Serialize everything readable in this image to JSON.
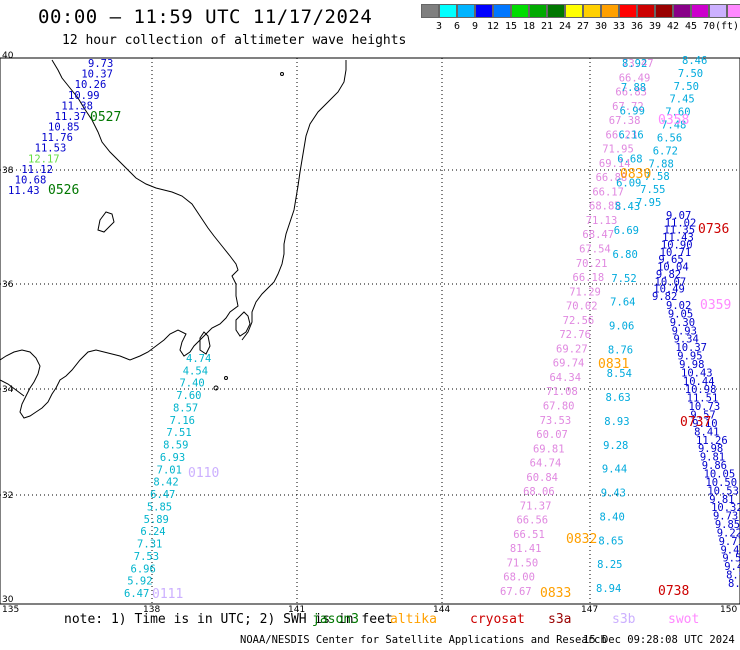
{
  "title": "00:00 — 11:59 UTC 11/17/2024",
  "subtitle": "12 hour collection of altimeter wave heights",
  "colorbar": {
    "colors": [
      "#7f7f7f",
      "#00ffff",
      "#00b4ff",
      "#0000ff",
      "#0077ff",
      "#00dd00",
      "#00aa00",
      "#007700",
      "#ffff00",
      "#ffd000",
      "#ffa000",
      "#ff0000",
      "#cc0000",
      "#990000",
      "#880088",
      "#cc00cc",
      "#ccb0ff",
      "#ff88ff",
      "#000000"
    ],
    "ticks": [
      "3",
      "6",
      "9",
      "12",
      "15",
      "18",
      "21",
      "24",
      "27",
      "30",
      "33",
      "36",
      "39",
      "42",
      "45",
      "70",
      "(ft)"
    ]
  },
  "axes": {
    "x_ticks": [
      "135",
      "138",
      "141",
      "144",
      "147",
      "150"
    ],
    "y_ticks": [
      "40",
      "38",
      "36",
      "34",
      "32",
      "30"
    ]
  },
  "passes": [
    {
      "time": "0527",
      "color": "#007700"
    },
    {
      "time": "0526",
      "color": "#007700"
    },
    {
      "time": "0110",
      "color": "#ccb0ff"
    },
    {
      "time": "0111",
      "color": "#ccb0ff"
    },
    {
      "time": "0358",
      "color": "#ff88ff"
    },
    {
      "time": "0830",
      "color": "#ffa000"
    },
    {
      "time": "0736",
      "color": "#cc0000"
    },
    {
      "time": "0359",
      "color": "#ff88ff"
    },
    {
      "time": "0831",
      "color": "#ffa000"
    },
    {
      "time": "0737",
      "color": "#cc0000"
    },
    {
      "time": "0832",
      "color": "#ffa000"
    },
    {
      "time": "0833",
      "color": "#ffa000"
    },
    {
      "time": "0738",
      "color": "#cc0000"
    }
  ],
  "tracks": {
    "jason3_nw": {
      "color": "#0000cc",
      "values": [
        "9.73",
        "10.37",
        "10.26",
        "10.99",
        "11.38",
        "11.37",
        "10.85",
        "11.76",
        "11.53",
        "12.17",
        "11.12",
        "10.68",
        "11.43"
      ]
    },
    "sentinel_coast": {
      "color": "#00b4cc",
      "values": [
        "4.74",
        "4.54",
        "7.40",
        "7.60",
        "8.57",
        "7.16",
        "7.51",
        "8.59",
        "6.93",
        "7.01",
        "8.42",
        "6.47",
        "5.85",
        "5.89",
        "6.24",
        "7.31",
        "7.53",
        "6.96",
        "5.92",
        "6.47"
      ]
    },
    "swot_east": {
      "color": "#e088e0",
      "values": [
        "73.47",
        "66.49",
        "66.83",
        "67.72",
        "67.38",
        "66.23",
        "71.95",
        "69.14",
        "66.88",
        "66.17",
        "68.85",
        "71.13",
        "68.47",
        "67.54",
        "70.21",
        "66.18",
        "71.29",
        "70.02",
        "72.56",
        "72.76",
        "69.27",
        "69.74",
        "64.34",
        "71.08",
        "67.80",
        "73.53",
        "60.07",
        "69.81",
        "64.74",
        "60.84",
        "68.06",
        "71.37",
        "66.56",
        "66.51",
        "81.41",
        "71.50",
        "68.00",
        "67.67"
      ]
    },
    "s3b_east": {
      "color": "#00aadd",
      "values": [
        "8.92",
        "7.88",
        "6.99",
        "6.16",
        "6.68",
        "6.09",
        "8.43",
        "6.69",
        "6.80",
        "7.52",
        "7.64",
        "9.06",
        "8.76",
        "8.54",
        "8.63",
        "8.93",
        "9.28",
        "9.44",
        "9.43",
        "8.40",
        "8.65",
        "8.25",
        "8.94",
        "8.46",
        "7.50",
        "7.50",
        "7.45",
        "7.60",
        "7.48",
        "6.56",
        "6.72",
        "7.88",
        "7.58",
        "7.55",
        "7.95"
      ]
    },
    "cryosat_east": {
      "color": "#0000cc",
      "values": [
        "9.07",
        "11.02",
        "11.35",
        "11.43",
        "10.90",
        "10.71",
        "9.65",
        "10.04",
        "9.82",
        "10.07",
        "10.49",
        "9.82",
        "9.02",
        "9.05",
        "9.30",
        "9.93",
        "9.34",
        "10.37",
        "9.95",
        "9.98",
        "10.43",
        "10.44",
        "10.98",
        "11.51",
        "10.73",
        "9.57",
        "9.10",
        "8.41",
        "11.26",
        "9.98",
        "9.81",
        "9.86",
        "10.05",
        "10.50",
        "10.53",
        "9.81",
        "10.32",
        "9.73",
        "9.85",
        "9.22",
        "9.71",
        "9.47",
        "9.50",
        "9.44",
        "8.9",
        "8.1"
      ]
    }
  },
  "note": "note: 1) Time is in UTC; 2) SWH is in feet",
  "legend": [
    {
      "name": "jason3",
      "color": "#007700"
    },
    {
      "name": "altika",
      "color": "#ffa000"
    },
    {
      "name": "cryosat",
      "color": "#cc0000"
    },
    {
      "name": "s3a",
      "color": "#990000"
    },
    {
      "name": "s3b",
      "color": "#ccb0ff"
    },
    {
      "name": "swot",
      "color": "#ff88ff"
    }
  ],
  "credit": "NOAA/NESDIS Center for Satellite Applications and Research",
  "generated": "15 Dec 09:28:08 UTC 2024"
}
